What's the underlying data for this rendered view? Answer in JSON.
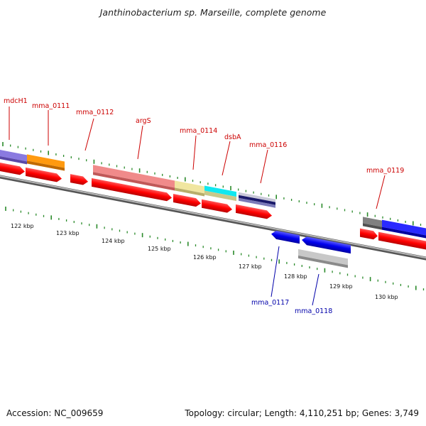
{
  "title": "Janthinobacterium sp. Marseille, complete genome",
  "accession": "Accession: NC_009659",
  "topology": "Topology: circular; Length: 4,110,251 bp; Genes: 3,749",
  "colors": {
    "forward_label": "#cc0000",
    "reverse_label": "#0000aa",
    "tick": "#2a8a2a",
    "backbone": "#8a8a8a"
  },
  "forward_labels": [
    {
      "id": "mdcH1",
      "text": "mdcH1"
    },
    {
      "id": "mma_0111",
      "text": "mma_0111"
    },
    {
      "id": "mma_0112",
      "text": "mma_0112"
    },
    {
      "id": "argS",
      "text": "argS"
    },
    {
      "id": "mma_0114",
      "text": "mma_0114"
    },
    {
      "id": "dsbA",
      "text": "dsbA"
    },
    {
      "id": "mma_0116",
      "text": "mma_0116"
    },
    {
      "id": "mma_0119",
      "text": "mma_0119"
    }
  ],
  "reverse_labels": [
    {
      "id": "mma_0117",
      "text": "mma_0117"
    },
    {
      "id": "mma_0118",
      "text": "mma_0118"
    }
  ],
  "scale_labels": [
    "122 kbp",
    "123 kbp",
    "124 kbp",
    "125 kbp",
    "126 kbp",
    "127 kbp",
    "128 kbp",
    "129 kbp",
    "130 kbp"
  ]
}
